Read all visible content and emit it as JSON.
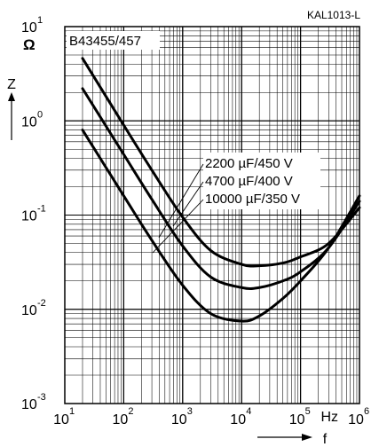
{
  "chart_data": {
    "type": "line",
    "code": "KAL1013-L",
    "series_label": "B43455/457",
    "x_scale": "log",
    "y_scale": "log",
    "xlim": [
      10,
      1000000
    ],
    "ylim": [
      0.001,
      10
    ],
    "grid": true,
    "xlabel": "f",
    "x_unit": "Hz",
    "ylabel": "Z",
    "y_unit": "Ω",
    "x_ticks": [
      {
        "value": 10,
        "base": "10",
        "exp": "1"
      },
      {
        "value": 100,
        "base": "10",
        "exp": "2"
      },
      {
        "value": 1000,
        "base": "10",
        "exp": "3"
      },
      {
        "value": 10000,
        "base": "10",
        "exp": "4"
      },
      {
        "value": 100000,
        "base": "10",
        "exp": "5"
      },
      {
        "value": 1000000,
        "base": "10",
        "exp": "6"
      }
    ],
    "y_ticks": [
      {
        "value": 10,
        "base": "10",
        "exp": "1"
      },
      {
        "value": 1,
        "base": "10",
        "exp": "0"
      },
      {
        "value": 0.1,
        "base": "10",
        "exp": "-1"
      },
      {
        "value": 0.01,
        "base": "10",
        "exp": "-2"
      },
      {
        "value": 0.001,
        "base": "10",
        "exp": "-3"
      }
    ],
    "series": [
      {
        "name": "2200 µF/450 V",
        "x": [
          20,
          100,
          300,
          1000,
          3000,
          10000,
          20000,
          50000,
          100000,
          300000,
          1000000
        ],
        "y": [
          4.6,
          0.9,
          0.3,
          0.095,
          0.042,
          0.03,
          0.029,
          0.031,
          0.036,
          0.05,
          0.12
        ]
      },
      {
        "name": "4700 µF/400 V",
        "x": [
          20,
          100,
          300,
          1000,
          3000,
          10000,
          20000,
          50000,
          100000,
          300000,
          1000000
        ],
        "y": [
          2.2,
          0.44,
          0.147,
          0.047,
          0.022,
          0.017,
          0.017,
          0.02,
          0.025,
          0.045,
          0.14
        ]
      },
      {
        "name": "10000 µF/350 V",
        "x": [
          20,
          100,
          300,
          1000,
          3000,
          10000,
          20000,
          50000,
          100000,
          300000,
          1000000
        ],
        "y": [
          0.8,
          0.16,
          0.054,
          0.018,
          0.009,
          0.0075,
          0.0085,
          0.013,
          0.02,
          0.045,
          0.16
        ]
      }
    ]
  }
}
